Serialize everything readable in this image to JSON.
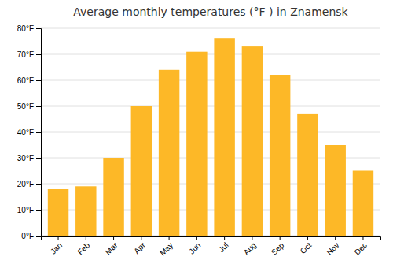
{
  "chart_data": {
    "type": "bar",
    "title": "Average monthly temperatures (°F ) in Znamensk",
    "categories": [
      "Jan",
      "Feb",
      "Mar",
      "Apr",
      "May",
      "Jun",
      "Jul",
      "Aug",
      "Sep",
      "Oct",
      "Nov",
      "Dec"
    ],
    "values": [
      18,
      19,
      30,
      50,
      64,
      71,
      76,
      73,
      62,
      47,
      35,
      25
    ],
    "color": "#FDB827",
    "ylim": [
      0,
      80
    ],
    "yticks": [
      {
        "value": 0,
        "label": "0°F"
      },
      {
        "value": 10,
        "label": "10°F"
      },
      {
        "value": 20,
        "label": "20°F"
      },
      {
        "value": 30,
        "label": "30°F"
      },
      {
        "value": 40,
        "label": "40°F"
      },
      {
        "value": 50,
        "label": "50°F"
      },
      {
        "value": 60,
        "label": "60°F"
      },
      {
        "value": 70,
        "label": "70°F"
      },
      {
        "value": 80,
        "label": "80°F"
      }
    ],
    "grid": true
  }
}
